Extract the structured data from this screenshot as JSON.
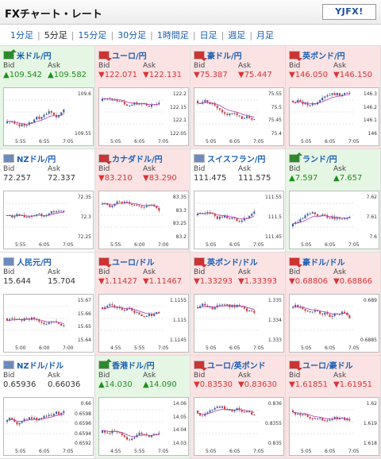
{
  "header": {
    "title": "FXチャート・レート",
    "logo": "YJFX!"
  },
  "tabs": [
    "1分足",
    "5分足",
    "15分足",
    "30分足",
    "1時間足",
    "日足",
    "週足",
    "月足"
  ],
  "active_tab": 1,
  "labels": {
    "bid": "Bid",
    "ask": "Ask"
  },
  "pairs": [
    {
      "name": "米ドル/円",
      "trend": "up",
      "bid": "▲109.542",
      "ask": "▲109.582",
      "ticks": [
        "109.6",
        "109.55"
      ],
      "times": [
        "5:55",
        "6:55",
        "7:05"
      ]
    },
    {
      "name": "ユーロ/円",
      "trend": "down",
      "bid": "▼122.071",
      "ask": "▼122.131",
      "ticks": [
        "122.2",
        "122.15",
        "122.1",
        "122.05"
      ],
      "times": [
        "5:05",
        "6:05",
        "7:05"
      ]
    },
    {
      "name": "豪ドル/円",
      "trend": "down",
      "bid": "▼75.387",
      "ask": "▼75.447",
      "ticks": [
        "75.55",
        "75.5",
        "75.45",
        "75.4"
      ],
      "times": [
        "5:05",
        "6:05",
        "7:05"
      ]
    },
    {
      "name": "英ポンド/円",
      "trend": "down",
      "bid": "▼146.050",
      "ask": "▼146.150",
      "ticks": [
        "146.3",
        "146.2",
        "146.1",
        "146"
      ],
      "times": [
        "5:05",
        "6:05",
        "7:05"
      ]
    },
    {
      "name": "NZドル/円",
      "trend": "flat",
      "bid": "72.257",
      "ask": "72.337",
      "ticks": [
        "72.35",
        "72.3",
        "72.25"
      ],
      "times": [
        "5:55",
        "6:05",
        "7:05"
      ]
    },
    {
      "name": "カナダドル/円",
      "trend": "down",
      "bid": "▼83.210",
      "ask": "▼83.290",
      "ticks": [
        "83.35",
        "83.3",
        "83.25",
        "83.2"
      ],
      "times": [
        "5:55",
        "6:00",
        "7:00"
      ]
    },
    {
      "name": "スイスフラン/円",
      "trend": "flat",
      "bid": "111.475",
      "ask": "111.575",
      "ticks": [
        "111.55",
        "111.5",
        "111.45"
      ],
      "times": [
        "5:05",
        "6:05",
        "7:05"
      ]
    },
    {
      "name": "ランド/円",
      "trend": "up",
      "bid": "▲7.597",
      "ask": "▲7.657",
      "ticks": [
        "7.62",
        "7.61",
        "7.6"
      ],
      "times": [
        "5:05",
        "6:05",
        "7:05"
      ]
    },
    {
      "name": "人民元/円",
      "trend": "flat",
      "bid": "15.644",
      "ask": "15.704",
      "ticks": [
        "15.67",
        "15.66",
        "15.65",
        "15.64"
      ],
      "times": [
        "5:00",
        "6:00",
        "7:00"
      ]
    },
    {
      "name": "ユーロ/ドル",
      "trend": "down",
      "bid": "▼1.11427",
      "ask": "▼1.11467",
      "ticks": [
        "1.1155",
        "1.115",
        "1.1145"
      ],
      "times": [
        "4:55",
        "5:55",
        "7:05"
      ]
    },
    {
      "name": "英ポンド/ドル",
      "trend": "down",
      "bid": "▼1.33293",
      "ask": "▼1.33393",
      "ticks": [
        "1.335",
        "1.334",
        "1.333"
      ],
      "times": [
        "5:05",
        "6:05",
        "7:05"
      ]
    },
    {
      "name": "豪ドル/ドル",
      "trend": "down",
      "bid": "▼0.68806",
      "ask": "▼0.68866",
      "ticks": [
        "0.689",
        "0.6885"
      ],
      "times": [
        "5:05",
        "6:05",
        "7:05"
      ]
    },
    {
      "name": "NZドル/ドル",
      "trend": "flat",
      "bid": "0.65936",
      "ask": "0.66036",
      "ticks": [
        "0.66",
        "0.6598",
        "0.6596",
        "0.6594",
        "0.6592"
      ],
      "times": [
        "5:05",
        "6:05",
        "7:05"
      ]
    },
    {
      "name": "香港ドル/円",
      "trend": "up",
      "bid": "▲14.030",
      "ask": "▲14.090",
      "ticks": [
        "14.06",
        "14.05",
        "14.04",
        "14.03"
      ],
      "times": [
        "4:55",
        "5:55",
        "7:05"
      ]
    },
    {
      "name": "ユーロ/英ポンド",
      "trend": "down",
      "bid": "▼0.83530",
      "ask": "▼0.83630",
      "ticks": [
        "0.836",
        "0.8355",
        "0.835"
      ],
      "times": [
        "5:05",
        "6:05",
        "7:05"
      ]
    },
    {
      "name": "ユーロ/豪ドル",
      "trend": "down",
      "bid": "▼1.61851",
      "ask": "▼1.61951",
      "ticks": [
        "1.62",
        "1.619",
        "1.618"
      ],
      "times": [
        "5:05",
        "6:05",
        "7:05"
      ]
    }
  ],
  "colors": {
    "up_bg": "#e6f6e4",
    "down_bg": "#fbe3e4",
    "up_text": "#1c8f1c",
    "down_text": "#d33",
    "link": "#1a5fb4"
  }
}
